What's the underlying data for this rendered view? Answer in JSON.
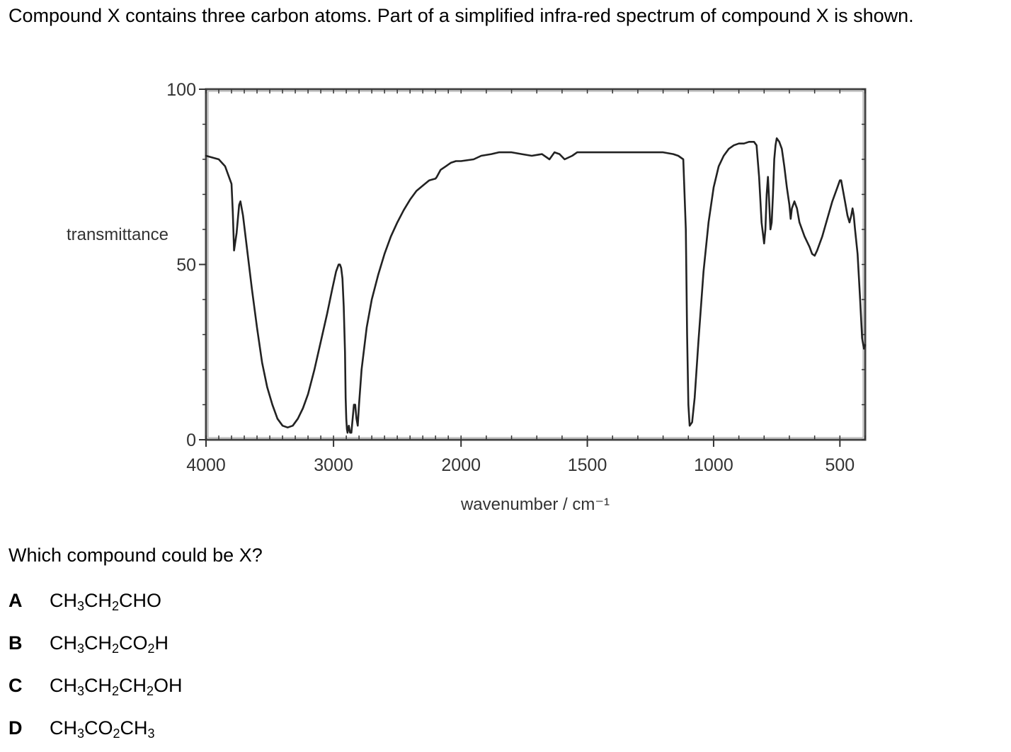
{
  "question": {
    "stem": "Compound X contains three carbon atoms. Part of a simplified infra-red spectrum of compound X is shown.",
    "prompt": "Which compound could be X?"
  },
  "options": [
    {
      "letter": "A",
      "parts": [
        [
          "CH",
          "3"
        ],
        [
          "CH",
          "2"
        ],
        [
          "CHO",
          ""
        ]
      ]
    },
    {
      "letter": "B",
      "parts": [
        [
          "CH",
          "3"
        ],
        [
          "CH",
          "2"
        ],
        [
          "CO",
          "2"
        ],
        [
          "H",
          ""
        ]
      ]
    },
    {
      "letter": "C",
      "parts": [
        [
          "CH",
          "3"
        ],
        [
          "CH",
          "2"
        ],
        [
          "CH",
          "2"
        ],
        [
          "OH",
          ""
        ]
      ]
    },
    {
      "letter": "D",
      "parts": [
        [
          "CH",
          "3"
        ],
        [
          "CO",
          "2"
        ],
        [
          "CH",
          "3"
        ]
      ]
    }
  ],
  "chart_data": {
    "type": "line",
    "title": "",
    "xlabel": "wavenumber / cm⁻¹",
    "ylabel": "transmittance",
    "xlim": [
      4000,
      400
    ],
    "ylim": [
      0,
      100
    ],
    "x_ticks": [
      4000,
      3000,
      2000,
      1500,
      1000,
      500
    ],
    "y_ticks": [
      100,
      50,
      0
    ],
    "x_minor_step": 100,
    "y_minor_step": 10,
    "grid": false,
    "line_color": "#222222",
    "series": [
      {
        "name": "",
        "points": [
          [
            4000,
            81
          ],
          [
            3900,
            80
          ],
          [
            3850,
            78
          ],
          [
            3820,
            75
          ],
          [
            3800,
            73
          ],
          [
            3790,
            65
          ],
          [
            3780,
            54
          ],
          [
            3760,
            59
          ],
          [
            3740,
            67
          ],
          [
            3730,
            68
          ],
          [
            3710,
            64
          ],
          [
            3680,
            55
          ],
          [
            3640,
            43
          ],
          [
            3600,
            32
          ],
          [
            3560,
            22
          ],
          [
            3520,
            15
          ],
          [
            3480,
            10
          ],
          [
            3440,
            6
          ],
          [
            3400,
            4
          ],
          [
            3360,
            3.5
          ],
          [
            3320,
            4
          ],
          [
            3280,
            6
          ],
          [
            3240,
            9
          ],
          [
            3200,
            13
          ],
          [
            3150,
            20
          ],
          [
            3100,
            28
          ],
          [
            3050,
            36
          ],
          [
            3010,
            43
          ],
          [
            2980,
            48
          ],
          [
            2960,
            50
          ],
          [
            2950,
            50
          ],
          [
            2940,
            49
          ],
          [
            2930,
            46
          ],
          [
            2920,
            38
          ],
          [
            2910,
            25
          ],
          [
            2905,
            12
          ],
          [
            2900,
            6
          ],
          [
            2895,
            3
          ],
          [
            2890,
            2
          ],
          [
            2880,
            4
          ],
          [
            2870,
            2
          ],
          [
            2860,
            2
          ],
          [
            2850,
            6
          ],
          [
            2840,
            10
          ],
          [
            2830,
            10
          ],
          [
            2820,
            6
          ],
          [
            2810,
            4
          ],
          [
            2800,
            10
          ],
          [
            2780,
            20
          ],
          [
            2740,
            32
          ],
          [
            2700,
            40
          ],
          [
            2650,
            47
          ],
          [
            2600,
            53
          ],
          [
            2550,
            58
          ],
          [
            2500,
            62
          ],
          [
            2450,
            65.5
          ],
          [
            2400,
            68.5
          ],
          [
            2350,
            71
          ],
          [
            2300,
            72.5
          ],
          [
            2250,
            74
          ],
          [
            2200,
            74.5
          ],
          [
            2190,
            75
          ],
          [
            2160,
            77
          ],
          [
            2120,
            78
          ],
          [
            2080,
            79
          ],
          [
            2040,
            79.5
          ],
          [
            2000,
            79.5
          ],
          [
            1950,
            80
          ],
          [
            1920,
            81
          ],
          [
            1880,
            81.5
          ],
          [
            1850,
            82
          ],
          [
            1800,
            82
          ],
          [
            1760,
            81.5
          ],
          [
            1720,
            81
          ],
          [
            1680,
            81.5
          ],
          [
            1650,
            80
          ],
          [
            1630,
            82
          ],
          [
            1610,
            81.5
          ],
          [
            1590,
            80
          ],
          [
            1560,
            81
          ],
          [
            1540,
            82
          ],
          [
            1500,
            82
          ],
          [
            1450,
            82
          ],
          [
            1400,
            82
          ],
          [
            1350,
            82
          ],
          [
            1300,
            82
          ],
          [
            1250,
            82
          ],
          [
            1200,
            82
          ],
          [
            1160,
            81.5
          ],
          [
            1140,
            81
          ],
          [
            1120,
            80
          ],
          [
            1110,
            60
          ],
          [
            1105,
            30
          ],
          [
            1100,
            10
          ],
          [
            1095,
            4
          ],
          [
            1085,
            5
          ],
          [
            1075,
            12
          ],
          [
            1060,
            28
          ],
          [
            1040,
            48
          ],
          [
            1020,
            62
          ],
          [
            1000,
            72
          ],
          [
            980,
            78
          ],
          [
            960,
            81
          ],
          [
            940,
            83
          ],
          [
            920,
            84
          ],
          [
            900,
            84.5
          ],
          [
            880,
            84.5
          ],
          [
            860,
            85
          ],
          [
            840,
            85
          ],
          [
            830,
            84
          ],
          [
            820,
            75
          ],
          [
            810,
            62
          ],
          [
            800,
            56
          ],
          [
            795,
            60
          ],
          [
            790,
            70
          ],
          [
            785,
            75
          ],
          [
            780,
            68
          ],
          [
            775,
            60
          ],
          [
            770,
            62
          ],
          [
            765,
            70
          ],
          [
            760,
            80
          ],
          [
            755,
            84
          ],
          [
            750,
            86
          ],
          [
            740,
            85
          ],
          [
            730,
            83
          ],
          [
            720,
            78
          ],
          [
            710,
            72
          ],
          [
            700,
            67
          ],
          [
            695,
            63
          ],
          [
            690,
            66
          ],
          [
            680,
            68
          ],
          [
            670,
            66
          ],
          [
            660,
            62
          ],
          [
            640,
            58
          ],
          [
            620,
            55
          ],
          [
            610,
            53
          ],
          [
            600,
            52.5
          ],
          [
            590,
            54
          ],
          [
            570,
            58
          ],
          [
            550,
            63
          ],
          [
            530,
            68
          ],
          [
            510,
            72
          ],
          [
            500,
            74
          ],
          [
            495,
            74
          ],
          [
            490,
            72
          ],
          [
            480,
            68
          ],
          [
            470,
            64
          ],
          [
            462,
            62
          ],
          [
            455,
            64
          ],
          [
            450,
            66
          ],
          [
            445,
            64
          ],
          [
            440,
            60
          ],
          [
            430,
            53
          ],
          [
            420,
            40
          ],
          [
            412,
            29
          ],
          [
            405,
            26
          ],
          [
            400,
            27
          ]
        ]
      }
    ]
  }
}
